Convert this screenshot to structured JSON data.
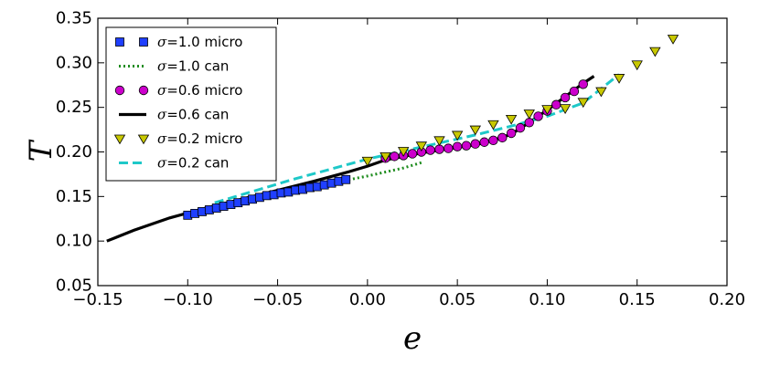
{
  "chart_data": {
    "type": "scatter",
    "title": "",
    "xlabel": "e",
    "ylabel": "T",
    "xlim": [
      -0.15,
      0.2
    ],
    "ylim": [
      0.05,
      0.35
    ],
    "xticks": [
      -0.15,
      -0.1,
      -0.05,
      0.0,
      0.05,
      0.1,
      0.15,
      0.2
    ],
    "yticks": [
      0.05,
      0.1,
      0.15,
      0.2,
      0.25,
      0.3,
      0.35
    ],
    "xtick_labels": [
      "−0.15",
      "−0.10",
      "−0.05",
      "0.00",
      "0.05",
      "0.10",
      "0.15",
      "0.20"
    ],
    "ytick_labels": [
      "0.05",
      "0.10",
      "0.15",
      "0.20",
      "0.25",
      "0.30",
      "0.35"
    ],
    "grid": false,
    "legend_position": "top-left",
    "series": [
      {
        "name": "σ=1.0 micro",
        "sym": "σ",
        "rest": "=1.0 micro",
        "style": "square",
        "color": "#1f3fff",
        "x": [
          -0.1,
          -0.096,
          -0.092,
          -0.088,
          -0.084,
          -0.08,
          -0.076,
          -0.072,
          -0.068,
          -0.064,
          -0.06,
          -0.056,
          -0.052,
          -0.048,
          -0.044,
          -0.04,
          -0.036,
          -0.032,
          -0.028,
          -0.024,
          -0.02,
          -0.016,
          -0.012
        ],
        "y": [
          0.129,
          0.131,
          0.133,
          0.135,
          0.137,
          0.139,
          0.141,
          0.143,
          0.145,
          0.147,
          0.149,
          0.151,
          0.152,
          0.154,
          0.155,
          0.157,
          0.158,
          0.16,
          0.161,
          0.163,
          0.165,
          0.167,
          0.169
        ]
      },
      {
        "name": "σ=1.0 can",
        "sym": "σ",
        "rest": "=1.0 can",
        "style": "dotted",
        "color": "#1e8c1e",
        "x": [
          -0.1,
          -0.08,
          -0.06,
          -0.04,
          -0.02,
          0.0,
          0.02,
          0.03
        ],
        "y": [
          0.129,
          0.139,
          0.149,
          0.157,
          0.165,
          0.173,
          0.182,
          0.188
        ]
      },
      {
        "name": "σ=0.6 micro",
        "sym": "σ",
        "rest": "=0.6 micro",
        "style": "circle",
        "color": "#cc00cc",
        "x": [
          0.01,
          0.015,
          0.02,
          0.025,
          0.03,
          0.035,
          0.04,
          0.045,
          0.05,
          0.055,
          0.06,
          0.065,
          0.07,
          0.075,
          0.08,
          0.085,
          0.09,
          0.095,
          0.1,
          0.105,
          0.11,
          0.115,
          0.12
        ],
        "y": [
          0.193,
          0.195,
          0.196,
          0.198,
          0.2,
          0.202,
          0.203,
          0.204,
          0.206,
          0.207,
          0.209,
          0.211,
          0.213,
          0.216,
          0.221,
          0.227,
          0.233,
          0.24,
          0.246,
          0.253,
          0.261,
          0.268,
          0.276
        ]
      },
      {
        "name": "σ=0.6 can",
        "sym": "σ",
        "rest": "=0.6 can",
        "style": "solid",
        "color": "#000000",
        "x": [
          -0.145,
          -0.13,
          -0.11,
          -0.09,
          -0.07,
          -0.05,
          -0.03,
          -0.01,
          0.0,
          0.01,
          0.03,
          0.05,
          0.06,
          0.07,
          0.08,
          0.09,
          0.1,
          0.11,
          0.12,
          0.126
        ],
        "y": [
          0.1,
          0.112,
          0.126,
          0.137,
          0.147,
          0.157,
          0.167,
          0.178,
          0.184,
          0.191,
          0.199,
          0.205,
          0.208,
          0.213,
          0.22,
          0.233,
          0.247,
          0.262,
          0.277,
          0.285
        ]
      },
      {
        "name": "σ=0.2 micro",
        "sym": "σ",
        "rest": "=0.2 micro",
        "style": "triangle",
        "color": "#c8c800",
        "x": [
          0.0,
          0.01,
          0.02,
          0.03,
          0.04,
          0.05,
          0.06,
          0.07,
          0.08,
          0.09,
          0.1,
          0.11,
          0.12,
          0.13,
          0.14,
          0.15,
          0.16,
          0.17
        ],
        "y": [
          0.19,
          0.195,
          0.201,
          0.207,
          0.213,
          0.219,
          0.225,
          0.231,
          0.237,
          0.243,
          0.248,
          0.249,
          0.256,
          0.268,
          0.283,
          0.298,
          0.313,
          0.327
        ]
      },
      {
        "name": "σ=0.2 can",
        "sym": "σ",
        "rest": "=0.2 can",
        "style": "dashed",
        "color": "#1ec8c8",
        "x": [
          -0.085,
          -0.06,
          -0.04,
          -0.02,
          0.0,
          0.02,
          0.04,
          0.06,
          0.08,
          0.1,
          0.12,
          0.14
        ],
        "y": [
          0.143,
          0.158,
          0.17,
          0.181,
          0.192,
          0.201,
          0.21,
          0.219,
          0.229,
          0.24,
          0.255,
          0.287
        ]
      }
    ]
  }
}
